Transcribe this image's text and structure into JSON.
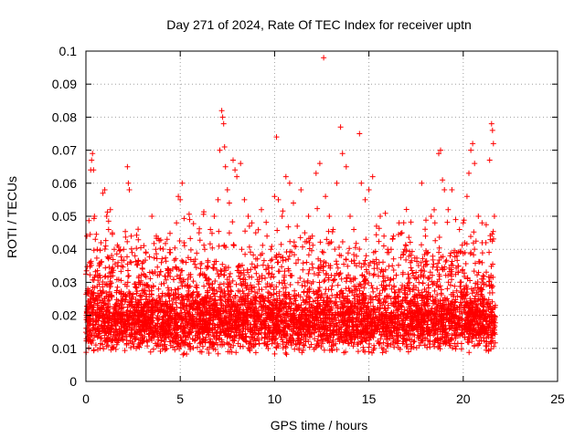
{
  "chart_data": {
    "type": "scatter",
    "title": "Day 271 of 2024, Rate Of TEC Index for receiver uptn",
    "xlabel": "GPS time / hours",
    "ylabel": "ROTI / TECUs",
    "xlim": [
      0,
      25
    ],
    "ylim": [
      0,
      0.1
    ],
    "x_ticks": [
      "0",
      "5",
      "10",
      "15",
      "20",
      "25"
    ],
    "y_ticks": [
      "0",
      "0.01",
      "0.02",
      "0.03",
      "0.04",
      "0.05",
      "0.06",
      "0.07",
      "0.08",
      "0.09",
      "0.1"
    ],
    "grid": true,
    "marker": "plus",
    "colors": {
      "series": "#ff0000",
      "grid": "#a0a0a0",
      "axis": "#000000"
    },
    "series": [
      {
        "points": [
          [
            0.05,
            0.044
          ],
          [
            0.1,
            0.028
          ],
          [
            0.2,
            0.036
          ],
          [
            0.25,
            0.064
          ],
          [
            0.3,
            0.067
          ],
          [
            0.35,
            0.069
          ],
          [
            0.4,
            0.064
          ],
          [
            0.45,
            0.05
          ],
          [
            0.5,
            0.043
          ],
          [
            0.6,
            0.04
          ],
          [
            0.7,
            0.035
          ],
          [
            0.8,
            0.042
          ],
          [
            0.9,
            0.057
          ],
          [
            1.0,
            0.058
          ],
          [
            1.1,
            0.05
          ],
          [
            1.2,
            0.046
          ],
          [
            1.3,
            0.052
          ],
          [
            1.4,
            0.045
          ],
          [
            1.5,
            0.04
          ],
          [
            1.7,
            0.036
          ],
          [
            2.0,
            0.04
          ],
          [
            2.2,
            0.065
          ],
          [
            2.25,
            0.06
          ],
          [
            2.3,
            0.058
          ],
          [
            2.4,
            0.044
          ],
          [
            2.6,
            0.038
          ],
          [
            2.8,
            0.03
          ],
          [
            3.0,
            0.034
          ],
          [
            3.2,
            0.029
          ],
          [
            3.5,
            0.05
          ],
          [
            3.7,
            0.04
          ],
          [
            4.0,
            0.036
          ],
          [
            4.3,
            0.043
          ],
          [
            4.6,
            0.034
          ],
          [
            4.8,
            0.048
          ],
          [
            4.9,
            0.056
          ],
          [
            5.0,
            0.055
          ],
          [
            5.1,
            0.06
          ],
          [
            5.2,
            0.042
          ],
          [
            5.5,
            0.049
          ],
          [
            5.8,
            0.037
          ],
          [
            6.0,
            0.045
          ],
          [
            6.3,
            0.04
          ],
          [
            6.6,
            0.046
          ],
          [
            6.8,
            0.05
          ],
          [
            7.0,
            0.055
          ],
          [
            7.1,
            0.07
          ],
          [
            7.2,
            0.082
          ],
          [
            7.25,
            0.08
          ],
          [
            7.3,
            0.078
          ],
          [
            7.35,
            0.071
          ],
          [
            7.4,
            0.065
          ],
          [
            7.5,
            0.058
          ],
          [
            7.6,
            0.054
          ],
          [
            7.8,
            0.067
          ],
          [
            7.9,
            0.064
          ],
          [
            8.0,
            0.062
          ],
          [
            8.2,
            0.066
          ],
          [
            8.4,
            0.055
          ],
          [
            8.6,
            0.05
          ],
          [
            8.8,
            0.048
          ],
          [
            9.0,
            0.045
          ],
          [
            9.3,
            0.052
          ],
          [
            9.6,
            0.044
          ],
          [
            9.8,
            0.04
          ],
          [
            10.0,
            0.056
          ],
          [
            10.1,
            0.074
          ],
          [
            10.2,
            0.055
          ],
          [
            10.4,
            0.05
          ],
          [
            10.6,
            0.062
          ],
          [
            10.8,
            0.06
          ],
          [
            11.0,
            0.054
          ],
          [
            11.2,
            0.047
          ],
          [
            11.4,
            0.058
          ],
          [
            11.6,
            0.045
          ],
          [
            11.8,
            0.05
          ],
          [
            12.0,
            0.044
          ],
          [
            12.2,
            0.063
          ],
          [
            12.4,
            0.066
          ],
          [
            12.6,
            0.098
          ],
          [
            12.7,
            0.056
          ],
          [
            12.9,
            0.05
          ],
          [
            13.1,
            0.046
          ],
          [
            13.3,
            0.06
          ],
          [
            13.5,
            0.077
          ],
          [
            13.6,
            0.069
          ],
          [
            13.8,
            0.065
          ],
          [
            14.0,
            0.05
          ],
          [
            14.2,
            0.046
          ],
          [
            14.5,
            0.075
          ],
          [
            14.6,
            0.06
          ],
          [
            14.8,
            0.055
          ],
          [
            15.0,
            0.058
          ],
          [
            15.2,
            0.062
          ],
          [
            15.4,
            0.047
          ],
          [
            15.6,
            0.05
          ],
          [
            15.8,
            0.044
          ],
          [
            16.0,
            0.04
          ],
          [
            16.3,
            0.044
          ],
          [
            16.6,
            0.048
          ],
          [
            16.9,
            0.04
          ],
          [
            17.2,
            0.036
          ],
          [
            17.5,
            0.033
          ],
          [
            17.8,
            0.06
          ],
          [
            18.0,
            0.044
          ],
          [
            18.3,
            0.05
          ],
          [
            18.5,
            0.048
          ],
          [
            18.7,
            0.069
          ],
          [
            18.8,
            0.07
          ],
          [
            18.9,
            0.061
          ],
          [
            19.0,
            0.058
          ],
          [
            19.2,
            0.052
          ],
          [
            19.4,
            0.058
          ],
          [
            19.6,
            0.049
          ],
          [
            19.8,
            0.046
          ],
          [
            20.0,
            0.048
          ],
          [
            20.2,
            0.056
          ],
          [
            20.3,
            0.063
          ],
          [
            20.4,
            0.07
          ],
          [
            20.5,
            0.072
          ],
          [
            20.6,
            0.066
          ],
          [
            20.8,
            0.05
          ],
          [
            21.0,
            0.048
          ],
          [
            21.2,
            0.042
          ],
          [
            21.4,
            0.067
          ],
          [
            21.5,
            0.078
          ],
          [
            21.55,
            0.076
          ],
          [
            21.6,
            0.072
          ],
          [
            21.65,
            0.05
          ]
        ]
      }
    ]
  }
}
